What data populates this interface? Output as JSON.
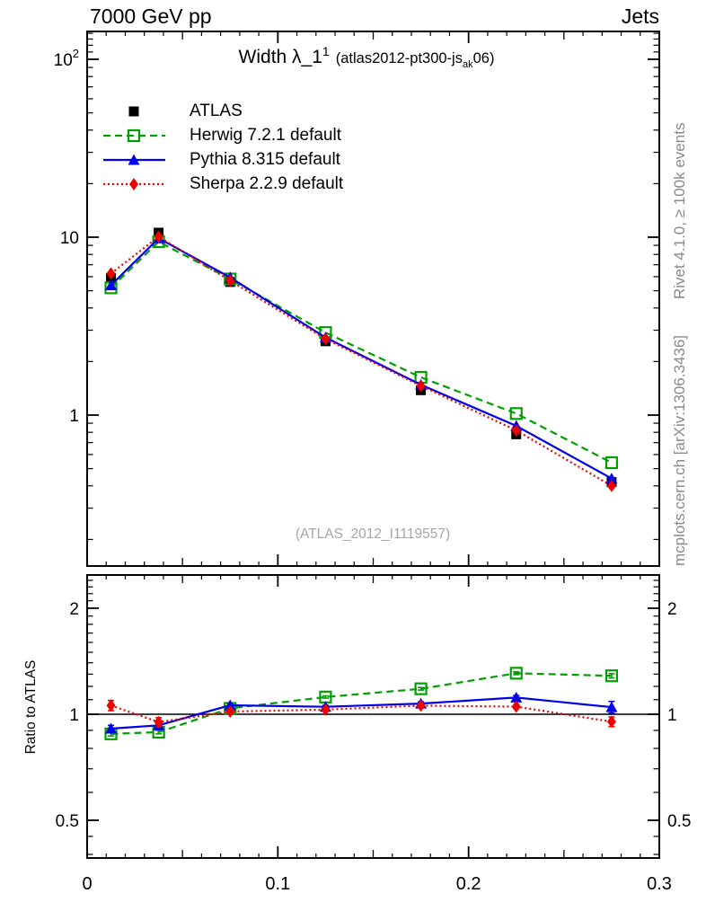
{
  "header": {
    "left": "7000 GeV pp",
    "right": "Jets"
  },
  "title": {
    "main": "Width λ_1",
    "sup": "1",
    "paren_pre": "(atlas2012-pt300-js",
    "sub": "ak",
    "paren_post": "06)"
  },
  "legend": [
    {
      "label": "ATLAS"
    },
    {
      "label": "Herwig 7.2.1 default"
    },
    {
      "label": "Pythia 8.315 default"
    },
    {
      "label": "Sherpa 2.2.9 default"
    }
  ],
  "watermark": "(ATLAS_2012_I1119557)",
  "side_notes": {
    "top": "Rivet 4.1.0, ≥ 100k events",
    "bottom": "mcplots.cern.ch [arXiv:1306.3436]"
  },
  "ratio_ylabel": "Ratio to ATLAS",
  "colors": {
    "atlas": "#000000",
    "herwig": "#00A000",
    "pythia": "#0000EE",
    "sherpa": "#EE0000",
    "frame": "#000000",
    "watermark": "#a6a6a6",
    "side_text": "#8a8a8a"
  },
  "chart_data": {
    "type": "line",
    "title": "Width λ_1^1 (atlas2012-pt300-js_ak06)",
    "x": [
      0.0125,
      0.0375,
      0.075,
      0.125,
      0.175,
      0.225,
      0.275
    ],
    "series": [
      {
        "name": "ATLAS",
        "role": "reference-data",
        "color": "#000000",
        "marker": "square-filled",
        "line": "none",
        "values": [
          5.9,
          10.6,
          5.6,
          2.6,
          1.38,
          0.78,
          0.42
        ],
        "errors": [
          0.18,
          0.3,
          0.15,
          0.08,
          0.05,
          0.035,
          0.025
        ]
      },
      {
        "name": "Herwig 7.2.1 default",
        "role": "mc",
        "color": "#00A000",
        "marker": "square-open",
        "line": "dashed",
        "values": [
          5.19,
          9.43,
          5.82,
          2.91,
          1.63,
          1.02,
          0.54
        ],
        "ratio_errors": [
          0.012,
          0.01,
          0.008,
          0.008,
          0.01,
          0.012,
          0.018
        ]
      },
      {
        "name": "Pythia 8.315 default",
        "role": "mc",
        "color": "#0000EE",
        "marker": "triangle-filled",
        "line": "solid",
        "values": [
          5.37,
          9.86,
          5.94,
          2.73,
          1.48,
          0.87,
          0.44
        ],
        "ratio_errors": [
          0.02,
          0.015,
          0.01,
          0.01,
          0.012,
          0.015,
          0.04
        ]
      },
      {
        "name": "Sherpa 2.2.9 default",
        "role": "mc",
        "color": "#EE0000",
        "marker": "diamond-filled",
        "line": "dotted",
        "values": [
          6.25,
          10.07,
          5.7,
          2.68,
          1.46,
          0.82,
          0.4
        ],
        "ratio_errors": [
          0.035,
          0.028,
          0.015,
          0.012,
          0.012,
          0.015,
          0.03
        ]
      }
    ],
    "axes": {
      "x": {
        "scale": "linear",
        "range": [
          0,
          0.3
        ],
        "major_ticks": [
          0,
          0.1,
          0.2,
          0.3
        ],
        "labels": [
          "0",
          "0.1",
          "0.2",
          "0.3"
        ],
        "medium_ticks": [
          0.05,
          0.15,
          0.25
        ],
        "minor_step": 0.01
      },
      "y_main": {
        "scale": "log",
        "range": [
          0.142,
          143
        ],
        "major_ticks": [
          1,
          10,
          100
        ],
        "labels": [
          "1",
          "10",
          "10^2"
        ]
      },
      "y_ratio": {
        "scale": "log",
        "range": [
          0.39,
          2.49
        ],
        "major_ticks": [
          0.5,
          1,
          2
        ],
        "labels": [
          "0.5",
          "1",
          "2"
        ]
      }
    },
    "ratio_reference": 1,
    "legend_position": "top-left-inside",
    "grid": false
  }
}
